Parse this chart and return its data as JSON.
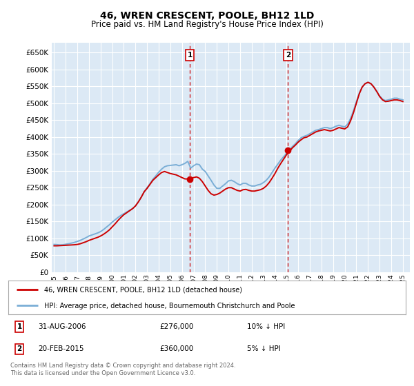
{
  "title": "46, WREN CRESCENT, POOLE, BH12 1LD",
  "subtitle": "Price paid vs. HM Land Registry's House Price Index (HPI)",
  "title_fontsize": 10,
  "subtitle_fontsize": 8.5,
  "background_color": "#ffffff",
  "plot_bg_color": "#dce9f5",
  "grid_color": "#ffffff",
  "ylabel_ticks": [
    0,
    50000,
    100000,
    150000,
    200000,
    250000,
    300000,
    350000,
    400000,
    450000,
    500000,
    550000,
    600000,
    650000
  ],
  "ylim": [
    0,
    680000
  ],
  "xlim_start": 1994.8,
  "xlim_end": 2025.6,
  "transaction1_x": 2006.667,
  "transaction1_y": 276000,
  "transaction1_label": "31-AUG-2006",
  "transaction1_price": "£276,000",
  "transaction1_note": "10% ↓ HPI",
  "transaction2_x": 2015.125,
  "transaction2_y": 360000,
  "transaction2_label": "20-FEB-2015",
  "transaction2_price": "£360,000",
  "transaction2_note": "5% ↓ HPI",
  "line1_color": "#cc0000",
  "line2_color": "#7aaed6",
  "line1_label": "46, WREN CRESCENT, POOLE, BH12 1LD (detached house)",
  "line2_label": "HPI: Average price, detached house, Bournemouth Christchurch and Poole",
  "marker_color": "#cc0000",
  "marker_size": 6,
  "footnote": "Contains HM Land Registry data © Crown copyright and database right 2024.\nThis data is licensed under the Open Government Licence v3.0.",
  "hpi_years": [
    1995.0,
    1995.25,
    1995.5,
    1995.75,
    1996.0,
    1996.25,
    1996.5,
    1996.75,
    1997.0,
    1997.25,
    1997.5,
    1997.75,
    1998.0,
    1998.25,
    1998.5,
    1998.75,
    1999.0,
    1999.25,
    1999.5,
    1999.75,
    2000.0,
    2000.25,
    2000.5,
    2000.75,
    2001.0,
    2001.25,
    2001.5,
    2001.75,
    2002.0,
    2002.25,
    2002.5,
    2002.75,
    2003.0,
    2003.25,
    2003.5,
    2003.75,
    2004.0,
    2004.25,
    2004.5,
    2004.75,
    2005.0,
    2005.25,
    2005.5,
    2005.75,
    2006.0,
    2006.25,
    2006.5,
    2006.75,
    2007.0,
    2007.25,
    2007.5,
    2007.75,
    2008.0,
    2008.25,
    2008.5,
    2008.75,
    2009.0,
    2009.25,
    2009.5,
    2009.75,
    2010.0,
    2010.25,
    2010.5,
    2010.75,
    2011.0,
    2011.25,
    2011.5,
    2011.75,
    2012.0,
    2012.25,
    2012.5,
    2012.75,
    2013.0,
    2013.25,
    2013.5,
    2013.75,
    2014.0,
    2014.25,
    2014.5,
    2014.75,
    2015.0,
    2015.25,
    2015.5,
    2015.75,
    2016.0,
    2016.25,
    2016.5,
    2016.75,
    2017.0,
    2017.25,
    2017.5,
    2017.75,
    2018.0,
    2018.25,
    2018.5,
    2018.75,
    2019.0,
    2019.25,
    2019.5,
    2019.75,
    2020.0,
    2020.25,
    2020.5,
    2020.75,
    2021.0,
    2021.25,
    2021.5,
    2021.75,
    2022.0,
    2022.25,
    2022.5,
    2022.75,
    2023.0,
    2023.25,
    2023.5,
    2023.75,
    2024.0,
    2024.25,
    2024.5,
    2024.75,
    2025.0
  ],
  "hpi_values": [
    82000,
    81500,
    80500,
    81000,
    82500,
    84000,
    86000,
    88000,
    91000,
    94000,
    98000,
    102000,
    107000,
    110000,
    113000,
    116000,
    120000,
    126000,
    133000,
    140000,
    148000,
    155000,
    162000,
    168000,
    173000,
    178000,
    183000,
    188000,
    196000,
    208000,
    222000,
    238000,
    250000,
    262000,
    275000,
    285000,
    296000,
    305000,
    312000,
    315000,
    316000,
    317000,
    318000,
    315000,
    318000,
    322000,
    328000,
    308000,
    315000,
    320000,
    318000,
    305000,
    298000,
    285000,
    272000,
    258000,
    248000,
    248000,
    255000,
    262000,
    270000,
    272000,
    268000,
    262000,
    258000,
    263000,
    263000,
    258000,
    255000,
    255000,
    258000,
    260000,
    265000,
    272000,
    282000,
    295000,
    308000,
    320000,
    332000,
    342000,
    352000,
    362000,
    372000,
    380000,
    390000,
    398000,
    402000,
    405000,
    410000,
    415000,
    420000,
    422000,
    425000,
    428000,
    428000,
    425000,
    428000,
    432000,
    435000,
    432000,
    430000,
    438000,
    455000,
    478000,
    505000,
    530000,
    548000,
    558000,
    562000,
    558000,
    548000,
    535000,
    522000,
    512000,
    508000,
    510000,
    512000,
    515000,
    515000,
    512000,
    510000
  ],
  "price_years": [
    1995.0,
    1995.25,
    1995.5,
    1995.75,
    1996.0,
    1996.25,
    1996.5,
    1996.75,
    1997.0,
    1997.25,
    1997.5,
    1997.75,
    1998.0,
    1998.25,
    1998.5,
    1998.75,
    1999.0,
    1999.25,
    1999.5,
    1999.75,
    2000.0,
    2000.25,
    2000.5,
    2000.75,
    2001.0,
    2001.25,
    2001.5,
    2001.75,
    2002.0,
    2002.25,
    2002.5,
    2002.75,
    2003.0,
    2003.25,
    2003.5,
    2003.75,
    2004.0,
    2004.25,
    2004.5,
    2004.75,
    2005.0,
    2005.25,
    2005.5,
    2005.75,
    2006.0,
    2006.25,
    2006.5,
    2006.75,
    2007.0,
    2007.25,
    2007.5,
    2007.75,
    2008.0,
    2008.25,
    2008.5,
    2008.75,
    2009.0,
    2009.25,
    2009.5,
    2009.75,
    2010.0,
    2010.25,
    2010.5,
    2010.75,
    2011.0,
    2011.25,
    2011.5,
    2011.75,
    2012.0,
    2012.25,
    2012.5,
    2012.75,
    2013.0,
    2013.25,
    2013.5,
    2013.75,
    2014.0,
    2014.25,
    2014.5,
    2014.75,
    2015.0,
    2015.25,
    2015.5,
    2015.75,
    2016.0,
    2016.25,
    2016.5,
    2016.75,
    2017.0,
    2017.25,
    2017.5,
    2017.75,
    2018.0,
    2018.25,
    2018.5,
    2018.75,
    2019.0,
    2019.25,
    2019.5,
    2019.75,
    2020.0,
    2020.25,
    2020.5,
    2020.75,
    2021.0,
    2021.25,
    2021.5,
    2021.75,
    2022.0,
    2022.25,
    2022.5,
    2022.75,
    2023.0,
    2023.25,
    2023.5,
    2023.75,
    2024.0,
    2024.25,
    2024.5,
    2024.75,
    2025.0
  ],
  "price_values": [
    78000,
    78000,
    78500,
    79000,
    79500,
    80000,
    80500,
    81000,
    82000,
    84000,
    87000,
    90000,
    94000,
    97000,
    100000,
    103000,
    107000,
    112000,
    118000,
    125000,
    134000,
    143000,
    153000,
    162000,
    170000,
    176000,
    182000,
    188000,
    196000,
    208000,
    222000,
    238000,
    248000,
    260000,
    272000,
    280000,
    288000,
    295000,
    298000,
    295000,
    292000,
    290000,
    288000,
    284000,
    280000,
    276000,
    276000,
    276000,
    280000,
    282000,
    278000,
    268000,
    255000,
    242000,
    232000,
    228000,
    230000,
    234000,
    240000,
    246000,
    250000,
    250000,
    246000,
    242000,
    240000,
    244000,
    245000,
    242000,
    240000,
    240000,
    242000,
    244000,
    248000,
    255000,
    265000,
    278000,
    292000,
    308000,
    322000,
    335000,
    348000,
    358000,
    368000,
    376000,
    385000,
    392000,
    398000,
    400000,
    405000,
    410000,
    415000,
    418000,
    420000,
    422000,
    420000,
    418000,
    420000,
    424000,
    428000,
    426000,
    424000,
    430000,
    448000,
    472000,
    500000,
    528000,
    548000,
    558000,
    562000,
    558000,
    548000,
    535000,
    520000,
    510000,
    505000,
    506000,
    508000,
    510000,
    510000,
    508000,
    505000
  ]
}
